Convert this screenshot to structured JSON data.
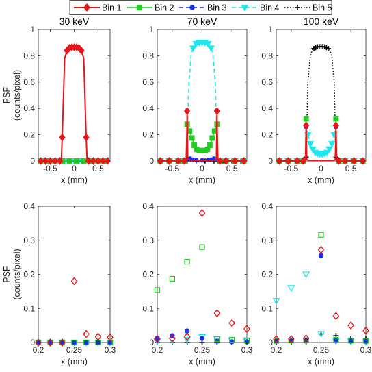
{
  "legend": [
    "Bin 1",
    "Bin 2",
    "Bin 3",
    "Bin 4",
    "Bin 5"
  ],
  "series_colors": [
    "#e8141a",
    "#22cc22",
    "#1a2ee8",
    "#1ee8ee",
    "#000000"
  ],
  "series_markers": [
    "diamond",
    "square",
    "circle",
    "triangle-down",
    "plus"
  ],
  "series_lines": [
    "solid",
    "solid",
    "dashed",
    "dashed",
    "dotted"
  ],
  "ylabel_line1": "PSF",
  "ylabel_line2": "(counts/pixel)",
  "xlabel": "x (mm)",
  "chart_data": [
    {
      "type": "line",
      "title": "30 keV",
      "xlim": [
        -0.75,
        0.75
      ],
      "ylim": [
        0,
        1
      ],
      "xticks": [
        -0.5,
        0,
        0.5
      ],
      "yticks": [
        0,
        0.2,
        0.4,
        0.6,
        0.8,
        1
      ],
      "xtick_labels": [
        "-0.5",
        "0",
        "0.5"
      ],
      "ytick_labels": [
        "0",
        "0.2",
        "0.4",
        "0.6",
        "0.8",
        "1"
      ],
      "series": [
        {
          "x": [
            -0.75,
            -0.7,
            -0.6,
            -0.5,
            -0.4,
            -0.3,
            -0.27,
            -0.25,
            -0.2,
            -0.15,
            -0.1,
            -0.05,
            0,
            0.05,
            0.1,
            0.15,
            0.2,
            0.25,
            0.27,
            0.3,
            0.4,
            0.5,
            0.6,
            0.7,
            0.75
          ],
          "y": [
            0,
            0,
            0,
            0,
            0,
            0,
            0,
            0.18,
            0.78,
            0.84,
            0.86,
            0.865,
            0.865,
            0.865,
            0.86,
            0.84,
            0.78,
            0.18,
            0,
            0,
            0,
            0,
            0,
            0,
            0
          ],
          "markers": [
            -0.7,
            -0.6,
            -0.5,
            -0.4,
            -0.3,
            -0.25,
            -0.15,
            -0.1,
            -0.05,
            0,
            0.05,
            0.1,
            0.15,
            0.25,
            0.3,
            0.4,
            0.5,
            0.6,
            0.7
          ]
        },
        {
          "x": [
            -0.75,
            0.75
          ],
          "y": [
            0,
            0
          ],
          "markers": [
            -0.7,
            -0.55,
            -0.4,
            -0.25,
            -0.1,
            0.05,
            0.2,
            0.35,
            0.5,
            0.65
          ]
        },
        {
          "x": [
            -0.75,
            0.75
          ],
          "y": [
            0,
            0
          ],
          "markers": [
            -0.7,
            -0.55,
            -0.4,
            -0.25,
            -0.1,
            0.05,
            0.2,
            0.35,
            0.5,
            0.65
          ]
        },
        {
          "x": [
            -0.75,
            0.75
          ],
          "y": [
            0,
            0
          ],
          "markers": [
            -0.7,
            -0.6,
            -0.5,
            -0.4,
            -0.3,
            -0.2,
            -0.1,
            0,
            0.1,
            0.2,
            0.3,
            0.4,
            0.5,
            0.6,
            0.7
          ]
        },
        {
          "x": [
            -0.75,
            0.75
          ],
          "y": [
            0,
            0
          ],
          "markers": [
            -0.7,
            -0.55,
            -0.4,
            -0.25,
            -0.1,
            0.05,
            0.2,
            0.35,
            0.5,
            0.65
          ]
        }
      ]
    },
    {
      "type": "line",
      "title": "70 keV",
      "xlim": [
        -0.75,
        0.75
      ],
      "ylim": [
        0,
        1
      ],
      "xticks": [
        -0.5,
        0,
        0.5
      ],
      "yticks": [
        0,
        0.2,
        0.4,
        0.6,
        0.8,
        1
      ],
      "xtick_labels": [
        "-0.5",
        "0",
        "0.5"
      ],
      "ytick_labels": [
        "0",
        "0.2",
        "0.4",
        "0.6",
        "0.8",
        "1"
      ],
      "series": [
        {
          "x": [
            -0.75,
            -0.3,
            -0.26,
            -0.25,
            -0.24,
            -0.2,
            0.2,
            0.24,
            0.25,
            0.26,
            0.3,
            0.75
          ],
          "y": [
            0,
            0,
            0.01,
            0.38,
            0.02,
            0.005,
            0.005,
            0.02,
            0.38,
            0.01,
            0,
            0
          ],
          "markers": [
            -0.7,
            -0.55,
            -0.4,
            -0.3,
            -0.25,
            0.25,
            0.3,
            0.4,
            0.55,
            0.7
          ]
        },
        {
          "x": [
            -0.75,
            -0.3,
            -0.27,
            -0.25,
            -0.22,
            -0.18,
            -0.14,
            -0.1,
            -0.05,
            0,
            0.05,
            0.1,
            0.14,
            0.18,
            0.22,
            0.25,
            0.27,
            0.3,
            0.75
          ],
          "y": [
            0,
            0,
            0.01,
            0.28,
            0.24,
            0.19,
            0.13,
            0.09,
            0.08,
            0.08,
            0.08,
            0.09,
            0.13,
            0.19,
            0.24,
            0.28,
            0.01,
            0,
            0
          ],
          "markers": [
            -0.7,
            -0.55,
            -0.4,
            -0.3,
            -0.25,
            -0.21,
            -0.17,
            -0.13,
            -0.09,
            -0.05,
            0,
            0.05,
            0.09,
            0.13,
            0.17,
            0.21,
            0.25,
            0.3,
            0.4,
            0.55,
            0.7
          ]
        },
        {
          "x": [
            -0.75,
            -0.3,
            -0.25,
            -0.21,
            -0.17,
            0,
            0.17,
            0.21,
            0.25,
            0.3,
            0.75
          ],
          "y": [
            0,
            0,
            0.012,
            0.02,
            0.01,
            0.005,
            0.01,
            0.02,
            0.012,
            0,
            0
          ],
          "markers": [
            -0.7,
            -0.55,
            -0.4,
            -0.3,
            -0.25,
            -0.2,
            -0.15,
            -0.1,
            0,
            0.1,
            0.15,
            0.2,
            0.25,
            0.3,
            0.4,
            0.55,
            0.7
          ]
        },
        {
          "x": [
            -0.75,
            -0.3,
            -0.26,
            -0.22,
            -0.18,
            -0.14,
            -0.1,
            -0.05,
            0,
            0.05,
            0.1,
            0.14,
            0.18,
            0.22,
            0.26,
            0.3,
            0.75
          ],
          "y": [
            0,
            0,
            0.02,
            0.6,
            0.82,
            0.87,
            0.89,
            0.9,
            0.9,
            0.9,
            0.89,
            0.87,
            0.82,
            0.6,
            0.02,
            0,
            0
          ],
          "markers": [
            -0.7,
            -0.55,
            -0.4,
            -0.3,
            -0.15,
            -0.1,
            -0.05,
            0,
            0.05,
            0.1,
            0.15,
            0.3,
            0.4,
            0.55,
            0.7
          ]
        },
        {
          "x": [
            -0.75,
            0.75
          ],
          "y": [
            0,
            0
          ],
          "markers": [
            -0.7,
            -0.55,
            -0.4,
            -0.25,
            -0.1,
            0.05,
            0.2,
            0.35,
            0.5,
            0.65
          ]
        }
      ]
    },
    {
      "type": "line",
      "title": "100 keV",
      "xlim": [
        -0.75,
        0.75
      ],
      "ylim": [
        0,
        1
      ],
      "xticks": [
        -0.5,
        0,
        0.5
      ],
      "yticks": [
        0,
        0.2,
        0.4,
        0.6,
        0.8,
        1
      ],
      "xtick_labels": [
        "-0.5",
        "0",
        "0.5"
      ],
      "ytick_labels": [
        "0",
        "0.2",
        "0.4",
        "0.6",
        "0.8",
        "1"
      ],
      "series": [
        {
          "x": [
            -0.75,
            -0.3,
            -0.26,
            -0.25,
            -0.24,
            -0.2,
            0.2,
            0.24,
            0.25,
            0.26,
            0.3,
            0.75
          ],
          "y": [
            0,
            0,
            0.01,
            0.27,
            0.01,
            0.005,
            0.005,
            0.01,
            0.27,
            0.01,
            0,
            0
          ],
          "markers": [
            -0.7,
            -0.55,
            -0.4,
            -0.3,
            -0.25,
            0.25,
            0.3,
            0.4,
            0.55,
            0.7
          ]
        },
        {
          "x": [
            -0.75,
            -0.3,
            -0.26,
            -0.25,
            -0.24,
            -0.2,
            0.2,
            0.24,
            0.25,
            0.26,
            0.3,
            0.75
          ],
          "y": [
            0,
            0,
            0.01,
            0.32,
            0.01,
            0.005,
            0.005,
            0.01,
            0.32,
            0.01,
            0,
            0
          ],
          "markers": [
            -0.7,
            -0.55,
            -0.4,
            -0.3,
            -0.25,
            0.25,
            0.3,
            0.4,
            0.55,
            0.7
          ]
        },
        {
          "x": [
            -0.75,
            -0.3,
            -0.26,
            -0.25,
            -0.24,
            -0.2,
            0.2,
            0.24,
            0.25,
            0.26,
            0.3,
            0.75
          ],
          "y": [
            0,
            0,
            0.01,
            0.26,
            0.01,
            0.005,
            0.005,
            0.01,
            0.26,
            0.01,
            0,
            0
          ],
          "markers": [
            -0.7,
            -0.55,
            -0.4,
            -0.3,
            -0.25,
            0.25,
            0.3,
            0.4,
            0.55,
            0.7
          ]
        },
        {
          "x": [
            -0.75,
            -0.3,
            -0.27,
            -0.25,
            -0.22,
            -0.18,
            -0.14,
            -0.1,
            -0.05,
            0,
            0.05,
            0.1,
            0.14,
            0.18,
            0.22,
            0.25,
            0.27,
            0.3,
            0.75
          ],
          "y": [
            0,
            0,
            0.01,
            0.13,
            0.2,
            0.13,
            0.09,
            0.065,
            0.055,
            0.05,
            0.055,
            0.065,
            0.09,
            0.13,
            0.2,
            0.13,
            0.01,
            0,
            0
          ],
          "markers": [
            -0.7,
            -0.55,
            -0.4,
            -0.3,
            -0.22,
            -0.18,
            -0.14,
            -0.1,
            -0.06,
            -0.02,
            0.02,
            0.06,
            0.1,
            0.14,
            0.18,
            0.22,
            0.3,
            0.4,
            0.55,
            0.7
          ]
        },
        {
          "x": [
            -0.75,
            -0.3,
            -0.27,
            -0.25,
            -0.22,
            -0.18,
            -0.14,
            -0.1,
            -0.05,
            0,
            0.05,
            0.1,
            0.14,
            0.18,
            0.22,
            0.25,
            0.27,
            0.3,
            0.75
          ],
          "y": [
            0,
            0,
            0.005,
            0.03,
            0.6,
            0.8,
            0.85,
            0.86,
            0.87,
            0.87,
            0.87,
            0.86,
            0.85,
            0.8,
            0.6,
            0.03,
            0.005,
            0,
            0
          ],
          "markers": [
            -0.7,
            -0.55,
            -0.4,
            -0.3,
            -0.25,
            -0.12,
            -0.09,
            -0.06,
            -0.03,
            0,
            0.03,
            0.06,
            0.09,
            0.12,
            0.25,
            0.3,
            0.4,
            0.55,
            0.7
          ]
        }
      ]
    },
    {
      "type": "scatter",
      "xlim": [
        0.2,
        0.3
      ],
      "ylim": [
        0,
        0.4
      ],
      "xticks": [
        0.2,
        0.25,
        0.3
      ],
      "yticks": [
        0,
        0.1,
        0.2,
        0.3,
        0.4
      ],
      "xtick_labels": [
        "0.2",
        "0.25",
        "0.3"
      ],
      "ytick_labels": [
        "0",
        "0.1",
        "0.2",
        "0.3",
        "0.4"
      ],
      "series": [
        {
          "x": [
            0.2,
            0.2167,
            0.2333,
            0.25,
            0.2667,
            0.2833,
            0.3
          ],
          "y": [
            0,
            0,
            0,
            0.18,
            0.025,
            0.017,
            0.015
          ]
        },
        {
          "x": [
            0.2,
            0.2167,
            0.2333,
            0.25,
            0.2667,
            0.2833,
            0.3
          ],
          "y": [
            0,
            0,
            0,
            0,
            0,
            0,
            0
          ]
        },
        {
          "x": [
            0.2,
            0.2167,
            0.2333,
            0.25,
            0.2667,
            0.2833,
            0.3
          ],
          "y": [
            0,
            0,
            0,
            0,
            0,
            0,
            0
          ]
        },
        {
          "x": [
            0.2,
            0.2167,
            0.2333,
            0.25,
            0.2667,
            0.2833,
            0.3
          ],
          "y": [
            0,
            0,
            0,
            0,
            0,
            0,
            0
          ]
        },
        {
          "x": [
            0.2,
            0.2167,
            0.2333,
            0.25,
            0.2667,
            0.2833,
            0.3
          ],
          "y": [
            0,
            0,
            0,
            0,
            0,
            0,
            0
          ]
        }
      ]
    },
    {
      "type": "scatter",
      "xlim": [
        0.2,
        0.3
      ],
      "ylim": [
        0,
        0.4
      ],
      "xticks": [
        0.2,
        0.25,
        0.3
      ],
      "yticks": [
        0,
        0.1,
        0.2,
        0.3,
        0.4
      ],
      "xtick_labels": [
        "0.2",
        "0.25",
        "0.3"
      ],
      "ytick_labels": [
        "0",
        "0.1",
        "0.2",
        "0.3",
        "0.4"
      ],
      "series": [
        {
          "x": [
            0.2,
            0.2167,
            0.2333,
            0.25,
            0.2667,
            0.2833,
            0.3
          ],
          "y": [
            0.01,
            0.012,
            0.017,
            0.38,
            0.086,
            0.057,
            0.04
          ]
        },
        {
          "x": [
            0.2,
            0.2167,
            0.2333,
            0.25,
            0.2667,
            0.2833,
            0.3
          ],
          "y": [
            0.154,
            0.187,
            0.237,
            0.28,
            0.01,
            0.008,
            0.006
          ]
        },
        {
          "x": [
            0.2,
            0.2167,
            0.2333,
            0.25,
            0.2667,
            0.2833,
            0.3
          ],
          "y": [
            0.013,
            0.02,
            0.034,
            0.012,
            0.004,
            0.002,
            0.002
          ]
        },
        {
          "x": [
            0.2,
            0.2167,
            0.2333,
            0.25,
            0.2667,
            0.2833,
            0.3
          ],
          "y": [
            0.004,
            0.006,
            0.008,
            0.016,
            0.01,
            0.006,
            0.005
          ]
        },
        {
          "x": [
            0.2,
            0.2167,
            0.2333,
            0.25,
            0.2667,
            0.2833,
            0.3
          ],
          "y": [
            0,
            0,
            0,
            0,
            0,
            0,
            0
          ]
        }
      ]
    },
    {
      "type": "scatter",
      "xlim": [
        0.2,
        0.3
      ],
      "ylim": [
        0,
        0.4
      ],
      "xticks": [
        0.2,
        0.25,
        0.3
      ],
      "yticks": [
        0,
        0.1,
        0.2,
        0.3,
        0.4
      ],
      "xtick_labels": [
        "0.2",
        "0.25",
        "0.3"
      ],
      "ytick_labels": [
        "0",
        "0.1",
        "0.2",
        "0.3",
        "0.4"
      ],
      "series": [
        {
          "x": [
            0.2,
            0.2167,
            0.2333,
            0.25,
            0.2667,
            0.2833,
            0.3
          ],
          "y": [
            0.01,
            0.01,
            0.012,
            0.272,
            0.078,
            0.05,
            0.035
          ]
        },
        {
          "x": [
            0.2,
            0.2167,
            0.2333,
            0.25,
            0.2667,
            0.2833,
            0.3
          ],
          "y": [
            0.005,
            0.006,
            0.007,
            0.316,
            0.008,
            0.006,
            0.005
          ]
        },
        {
          "x": [
            0.2,
            0.2167,
            0.2333,
            0.25,
            0.2667,
            0.2833,
            0.3
          ],
          "y": [
            0.004,
            0.005,
            0.006,
            0.255,
            0.005,
            0.004,
            0.003
          ]
        },
        {
          "x": [
            0.2,
            0.2167,
            0.2333,
            0.25,
            0.2667,
            0.2833,
            0.3
          ],
          "y": [
            0.122,
            0.16,
            0.2,
            0.025,
            0.004,
            0.003,
            0.002
          ]
        },
        {
          "x": [
            0.2,
            0.2167,
            0.2333,
            0.25,
            0.2667,
            0.2833,
            0.3
          ],
          "y": [
            0,
            0,
            0,
            0.025,
            0.02,
            0.01,
            0.01
          ]
        }
      ]
    }
  ]
}
